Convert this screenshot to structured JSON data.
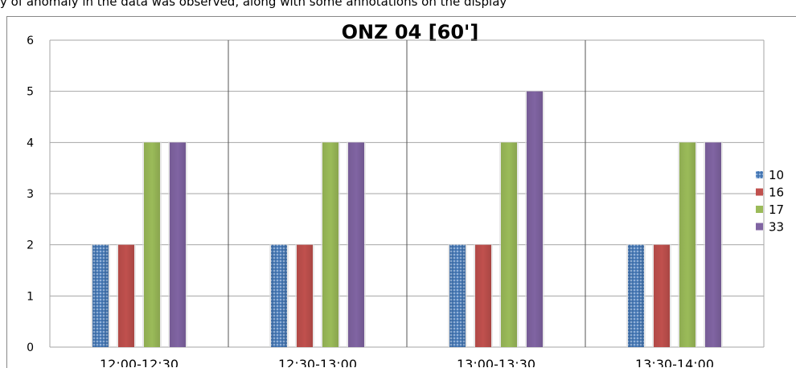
{
  "header_fragment": "y of anomaly in the data was observed, along with some annotations on the display",
  "chart_data": {
    "type": "bar",
    "title": "ONZ 04 [60']",
    "xlabel": "",
    "ylabel": "",
    "categories": [
      "12:00-12:30",
      "12:30-13:00",
      "13:00-13:30",
      "13:30-14:00"
    ],
    "series": [
      {
        "name": "10",
        "values": [
          2,
          2,
          2,
          2
        ],
        "color": "#4f81bd",
        "pattern": "dotted-texture"
      },
      {
        "name": "16",
        "values": [
          2,
          2,
          2,
          2
        ],
        "color": "#c0504d"
      },
      {
        "name": "17",
        "values": [
          4,
          4,
          4,
          4
        ],
        "color": "#9bbb59"
      },
      {
        "name": "33",
        "values": [
          4,
          4,
          5,
          4
        ],
        "color": "#8064a2"
      }
    ],
    "ylim": [
      0,
      6
    ],
    "yticks": [
      "0",
      "1",
      "2",
      "3",
      "4",
      "5",
      "6"
    ],
    "grid": true,
    "legend_position": "right"
  }
}
